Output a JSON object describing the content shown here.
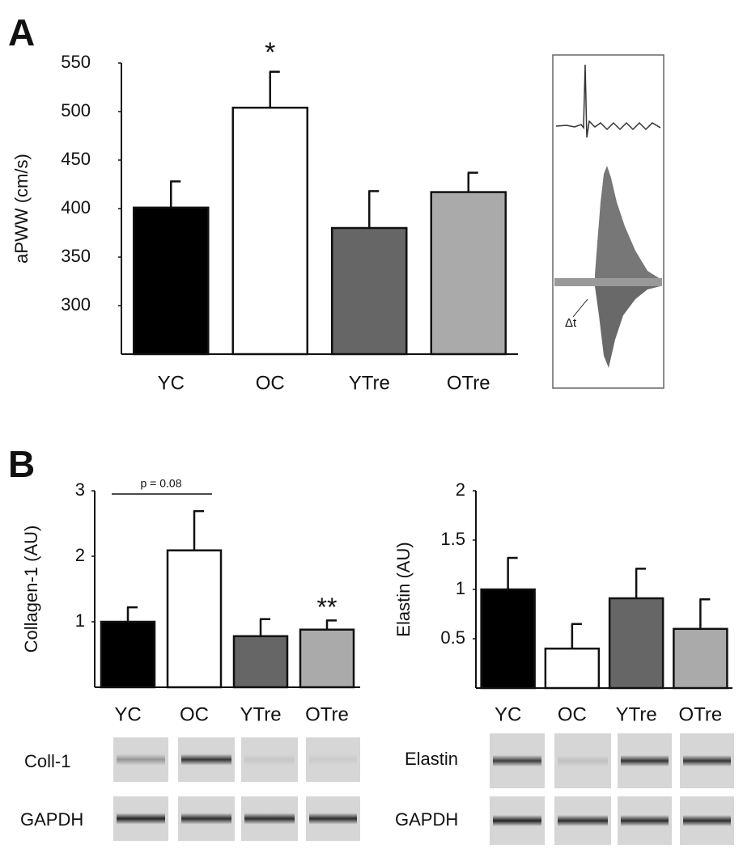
{
  "panels": {
    "a": "A",
    "b": "B"
  },
  "chart_data": [
    {
      "type": "bar",
      "y_label": "aPWW (cm/s)",
      "categories": [
        "YC",
        "OC",
        "YTre",
        "OTre"
      ],
      "values": [
        401,
        504,
        380,
        417
      ],
      "errors": [
        27,
        37,
        38,
        20
      ],
      "colors": [
        "#000000",
        "#ffffff",
        "#666666",
        "#aaaaaa"
      ],
      "ylim": [
        250,
        550
      ],
      "yticks": [
        300,
        350,
        400,
        450,
        500,
        550
      ],
      "annotations": [
        "*"
      ]
    },
    {
      "type": "bar",
      "y_label": "Collagen-1 (AU)",
      "categories": [
        "YC",
        "OC",
        "YTre",
        "OTre"
      ],
      "values": [
        1.0,
        2.09,
        0.78,
        0.88
      ],
      "errors": [
        0.22,
        0.6,
        0.26,
        0.14
      ],
      "colors": [
        "#000000",
        "#ffffff",
        "#666666",
        "#aaaaaa"
      ],
      "ylim": [
        0,
        3
      ],
      "yticks": [
        1,
        2,
        3
      ],
      "annotations": [
        "p = 0.08",
        "**"
      ]
    },
    {
      "type": "bar",
      "y_label": "Elastin (AU)",
      "categories": [
        "YC",
        "OC",
        "YTre",
        "OTre"
      ],
      "values": [
        1.0,
        0.4,
        0.91,
        0.6
      ],
      "errors": [
        0.32,
        0.25,
        0.3,
        0.3
      ],
      "colors": [
        "#000000",
        "#ffffff",
        "#666666",
        "#aaaaaa"
      ],
      "ylim": [
        0,
        2
      ],
      "yticks": [
        0.5,
        1,
        1.5,
        2
      ],
      "annotations": []
    }
  ],
  "inset": {
    "label": "Δt"
  },
  "blots": {
    "collagen": [
      "Coll-1",
      "GAPDH"
    ],
    "elastin": [
      "Elastin",
      "GAPDH"
    ]
  }
}
